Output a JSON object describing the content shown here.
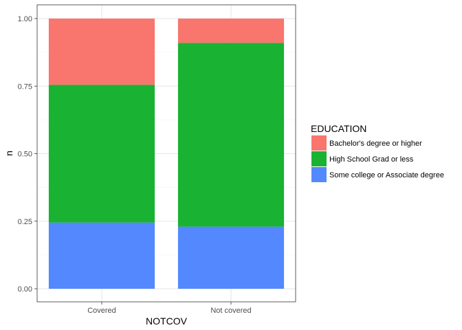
{
  "chart_data": {
    "type": "bar",
    "stacked": true,
    "categories": [
      "Covered",
      "Not covered"
    ],
    "series": [
      {
        "name": "Bachelor's degree or higher",
        "color": "#F8766D",
        "values": [
          0.245,
          0.09
        ]
      },
      {
        "name": "High School Grad or less",
        "color": "#1AB233",
        "values": [
          0.51,
          0.68
        ]
      },
      {
        "name": "Some college or Associate degree",
        "color": "#5388FF",
        "values": [
          0.245,
          0.23
        ]
      }
    ],
    "stack_order_bottom_to_top": [
      "Some college or Associate degree",
      "High School Grad or less",
      "Bachelor's degree or higher"
    ],
    "xlabel": "NOTCOV",
    "ylabel": "n",
    "ylim": [
      0,
      1
    ],
    "yticks": [
      "0.00",
      "0.25",
      "0.50",
      "0.75",
      "1.00"
    ],
    "ytick_values": [
      0,
      0.25,
      0.5,
      0.75,
      1.0
    ],
    "grid": true,
    "legend": {
      "title": "EDUCATION",
      "placement": "right"
    }
  }
}
